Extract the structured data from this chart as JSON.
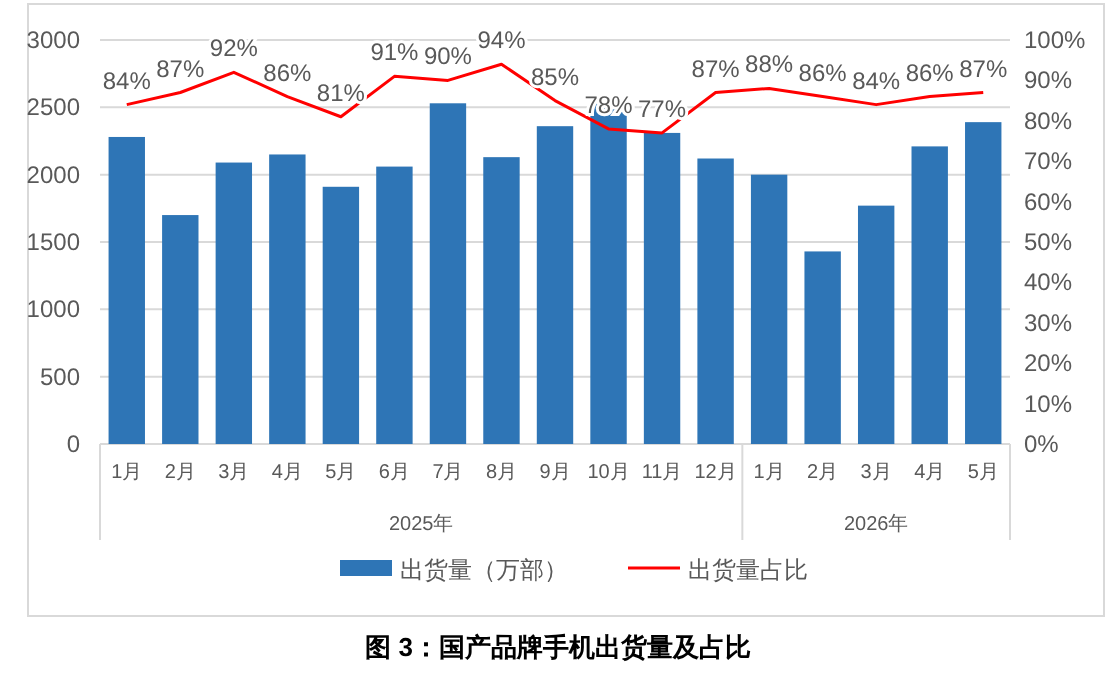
{
  "chart_data": {
    "type": "bar",
    "title": "图 3：国产品牌手机出货量及占比",
    "categories": [
      "1月",
      "2月",
      "3月",
      "4月",
      "5月",
      "6月",
      "7月",
      "8月",
      "9月",
      "10月",
      "11月",
      "12月",
      "1月",
      "2月",
      "3月",
      "4月",
      "5月"
    ],
    "series": [
      {
        "name": "出货量（万部）",
        "color": "#2e75b6",
        "values": [
          2280,
          1700,
          2090,
          2150,
          1910,
          2060,
          2530,
          2130,
          2360,
          2530,
          2310,
          2120,
          2000,
          1430,
          1770,
          2210,
          2390
        ]
      },
      {
        "name": "出货量占比",
        "type": "line",
        "axis": "y2",
        "color": "#ff0000",
        "data_labels": true,
        "value_labels": [
          "84%",
          "87%",
          "92%",
          "86%",
          "81%",
          "91%",
          "90%",
          "94%",
          "85%",
          "78%",
          "77%",
          "87%",
          "88%",
          "86%",
          "84%",
          "86%",
          "87%"
        ],
        "values": [
          84,
          87,
          92,
          86,
          81,
          91,
          90,
          94,
          85,
          78,
          77,
          87,
          88,
          86,
          84,
          86,
          87
        ]
      }
    ],
    "ylim": [
      0,
      3000
    ],
    "yticks": [
      0,
      500,
      1000,
      1500,
      2000,
      2500,
      3000
    ],
    "y2lim": [
      0,
      100
    ],
    "y2ticks": [
      {
        "value": 0,
        "label": "0%"
      },
      {
        "value": 10,
        "label": "10%"
      },
      {
        "value": 20,
        "label": "20%"
      },
      {
        "value": 30,
        "label": "30%"
      },
      {
        "value": 40,
        "label": "40%"
      },
      {
        "value": 50,
        "label": "50%"
      },
      {
        "value": 60,
        "label": "60%"
      },
      {
        "value": 70,
        "label": "70%"
      },
      {
        "value": 80,
        "label": "80%"
      },
      {
        "value": 90,
        "label": "90%"
      },
      {
        "value": 100,
        "label": "100%"
      }
    ],
    "annotations": [
      "2025年",
      "2026年"
    ],
    "grid": "y",
    "legend": "bottom"
  }
}
